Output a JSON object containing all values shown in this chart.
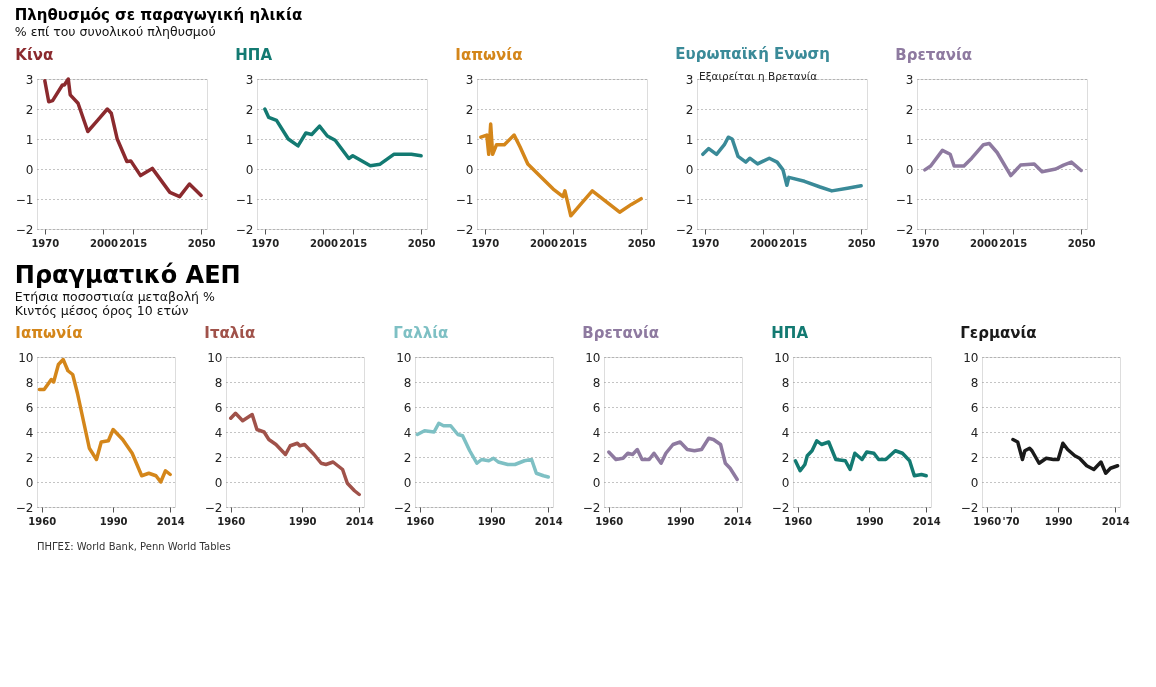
{
  "chart_data": [
    {
      "type": "line",
      "title": "Πληθυσμός σε παραγωγική ηλικία",
      "subtitle": "% επί του συνολικού πληθυσμού",
      "x": [
        1970,
        1972,
        1974,
        1979,
        1980,
        1982,
        1983,
        1987,
        1992,
        1997,
        2002,
        2004,
        2007,
        2012,
        2014,
        2019,
        2025,
        2034,
        2039,
        2044,
        2050
      ],
      "xlim": [
        1966,
        2053
      ],
      "xticks": [
        1970,
        2000,
        2015,
        2050
      ],
      "ylim": [
        -2,
        3
      ],
      "yticks": [
        -2,
        -1,
        0,
        1,
        2,
        3
      ],
      "grid": "y",
      "series": [
        {
          "name": "Κίνα",
          "color": "#8b2a2e",
          "values": [
            2.94,
            2.24,
            2.28,
            2.8,
            2.8,
            3.0,
            2.47,
            2.19,
            1.25,
            1.62,
            2.0,
            1.86,
            1.01,
            0.25,
            0.27,
            -0.22,
            0.02,
            -0.78,
            -0.92,
            -0.5,
            -0.88
          ]
        }
      ]
    },
    {
      "type": "line",
      "x": [
        1970,
        1972,
        1976,
        1982,
        1987,
        1991,
        1994,
        1998,
        2002,
        2006,
        2013,
        2015,
        2024,
        2029,
        2036,
        2045,
        2050
      ],
      "xlim": [
        1966,
        2053
      ],
      "xticks": [
        1970,
        2000,
        2015,
        2050
      ],
      "ylim": [
        -2,
        3
      ],
      "yticks": [
        -2,
        -1,
        0,
        1,
        2,
        3
      ],
      "grid": "y",
      "series": [
        {
          "name": "ΗΠΑ",
          "color": "#137a72",
          "values": [
            2.0,
            1.72,
            1.62,
            1.0,
            0.77,
            1.2,
            1.15,
            1.43,
            1.1,
            0.96,
            0.35,
            0.44,
            0.11,
            0.16,
            0.49,
            0.49,
            0.44
          ]
        }
      ]
    },
    {
      "type": "line",
      "x": [
        1968,
        1971,
        1972,
        1973,
        1974,
        1976,
        1980,
        1985,
        1988,
        1992,
        1999,
        2005,
        2010,
        2011,
        2014,
        2019,
        2025,
        2039,
        2045,
        2050
      ],
      "xlim": [
        1966,
        2053
      ],
      "xticks": [
        1970,
        2000,
        2015,
        2050
      ],
      "ylim": [
        -2,
        3
      ],
      "yticks": [
        -2,
        -1,
        0,
        1,
        2,
        3
      ],
      "grid": "y",
      "series": [
        {
          "name": "Ιαπωνία",
          "color": "#d4861a",
          "values": [
            1.06,
            1.13,
            0.49,
            1.5,
            0.49,
            0.81,
            0.81,
            1.13,
            0.74,
            0.17,
            -0.28,
            -0.67,
            -0.92,
            -0.73,
            -1.56,
            -1.18,
            -0.73,
            -1.44,
            -1.18,
            -0.99
          ]
        }
      ]
    },
    {
      "type": "line",
      "annotations": [
        "Εξαιρείται η Βρετανία"
      ],
      "x": [
        1969,
        1972,
        1976,
        1980,
        1982,
        1984,
        1987,
        1991,
        1993,
        1997,
        2003,
        2007,
        2010,
        2012,
        2013,
        2021,
        2029,
        2035,
        2043,
        2050
      ],
      "xlim": [
        1966,
        2053
      ],
      "xticks": [
        1970,
        2000,
        2015,
        2050
      ],
      "ylim": [
        -2,
        3
      ],
      "yticks": [
        -2,
        -1,
        0,
        1,
        2,
        3
      ],
      "grid": "y",
      "series": [
        {
          "name": "Ευρωπαϊκή Ενωση",
          "color": "#3a8a98",
          "values": [
            0.49,
            0.68,
            0.49,
            0.81,
            1.06,
            1.0,
            0.42,
            0.23,
            0.36,
            0.17,
            0.36,
            0.23,
            -0.03,
            -0.54,
            -0.28,
            -0.41,
            -0.6,
            -0.73,
            -0.64,
            -0.56
          ]
        }
      ]
    },
    {
      "type": "line",
      "x": [
        1970,
        1973,
        1979,
        1983,
        1985,
        1990,
        1994,
        2000,
        2003,
        2007,
        2014,
        2019,
        2026,
        2030,
        2037,
        2041,
        2045,
        2050
      ],
      "xlim": [
        1966,
        2053
      ],
      "xticks": [
        1970,
        2000,
        2015,
        2050
      ],
      "ylim": [
        -2,
        3
      ],
      "yticks": [
        -2,
        -1,
        0,
        1,
        2,
        3
      ],
      "grid": "y",
      "series": [
        {
          "name": "Βρετανία",
          "color": "#8e7aa0",
          "values": [
            -0.03,
            0.1,
            0.62,
            0.49,
            0.1,
            0.1,
            0.36,
            0.81,
            0.85,
            0.55,
            -0.22,
            0.13,
            0.17,
            -0.09,
            0.0,
            0.13,
            0.23,
            -0.05
          ]
        }
      ]
    },
    {
      "type": "line",
      "title": "Πραγματικό ΑΕΠ",
      "subtitle": "Ετήσια ποσοστιαία μεταβολή %",
      "annotations": [
        "Κιντός μέσος όρος 10 ετών",
        "ΠΗΓΕΣ: World Bank, Penn World Tables"
      ],
      "x": [
        1959,
        1961,
        1964,
        1965,
        1967,
        1969,
        1971,
        1973,
        1975,
        1980,
        1983,
        1985,
        1988,
        1990,
        1994,
        1998,
        2002,
        2005,
        2008,
        2010,
        2012,
        2014
      ],
      "xlim": [
        1958,
        2016
      ],
      "xticks": [
        1960,
        1990,
        2014
      ],
      "ylim": [
        -2,
        10
      ],
      "yticks": [
        -2,
        0,
        2,
        4,
        6,
        8,
        10
      ],
      "grid": "y",
      "series": [
        {
          "name": "Ιαπωνία",
          "color": "#d4861a",
          "values": [
            7.4,
            7.4,
            8.2,
            8.0,
            9.4,
            9.8,
            8.9,
            8.6,
            7.1,
            2.7,
            1.8,
            3.2,
            3.3,
            4.2,
            3.4,
            2.3,
            0.5,
            0.7,
            0.5,
            0.0,
            0.9,
            0.6
          ]
        }
      ]
    },
    {
      "type": "line",
      "x": [
        1960,
        1962,
        1965,
        1969,
        1971,
        1974,
        1976,
        1979,
        1983,
        1985,
        1988,
        1989,
        1991,
        1995,
        1998,
        2000,
        2003,
        2007,
        2009,
        2012,
        2014
      ],
      "xlim": [
        1958,
        2016
      ],
      "xticks": [
        1960,
        1990,
        2014
      ],
      "ylim": [
        -2,
        10
      ],
      "yticks": [
        -2,
        0,
        2,
        4,
        6,
        8,
        10
      ],
      "grid": "y",
      "series": [
        {
          "name": "Ιταλία",
          "color": "#a0524a",
          "values": [
            5.1,
            5.5,
            4.9,
            5.4,
            4.2,
            4.0,
            3.4,
            3.0,
            2.2,
            2.9,
            3.1,
            2.9,
            3.0,
            2.2,
            1.5,
            1.4,
            1.6,
            1.0,
            -0.1,
            -0.7,
            -1.0
          ]
        }
      ]
    },
    {
      "type": "line",
      "x": [
        1959,
        1962,
        1966,
        1968,
        1970,
        1973,
        1976,
        1978,
        1981,
        1984,
        1986,
        1989,
        1991,
        1993,
        1997,
        2000,
        2004,
        2007,
        2009,
        2012,
        2014
      ],
      "xlim": [
        1958,
        2016
      ],
      "xticks": [
        1960,
        1990,
        2014
      ],
      "ylim": [
        -2,
        10
      ],
      "yticks": [
        -2,
        0,
        2,
        4,
        6,
        8,
        10
      ],
      "grid": "y",
      "series": [
        {
          "name": "Γαλλία",
          "color": "#7ec0c4",
          "values": [
            3.8,
            4.1,
            4.0,
            4.7,
            4.5,
            4.5,
            3.8,
            3.7,
            2.5,
            1.5,
            1.8,
            1.7,
            1.9,
            1.6,
            1.4,
            1.4,
            1.7,
            1.8,
            0.7,
            0.5,
            0.4
          ]
        }
      ]
    },
    {
      "type": "line",
      "x": [
        1960,
        1963,
        1966,
        1968,
        1970,
        1972,
        1974,
        1977,
        1979,
        1982,
        1984,
        1987,
        1990,
        1993,
        1996,
        1999,
        2002,
        2004,
        2007,
        2009,
        2011,
        2014
      ],
      "xlim": [
        1958,
        2016
      ],
      "xticks": [
        1960,
        1990,
        2014
      ],
      "ylim": [
        -2,
        10
      ],
      "yticks": [
        -2,
        0,
        2,
        4,
        6,
        8,
        10
      ],
      "grid": "y",
      "series": [
        {
          "name": "Βρετανία",
          "color": "#8e7aa0",
          "values": [
            2.4,
            1.8,
            1.9,
            2.3,
            2.2,
            2.6,
            1.8,
            1.8,
            2.3,
            1.5,
            2.3,
            3.0,
            3.2,
            2.6,
            2.5,
            2.6,
            3.5,
            3.4,
            3.0,
            1.5,
            1.1,
            0.2
          ]
        }
      ]
    },
    {
      "type": "line",
      "x": [
        1959,
        1961,
        1963,
        1964,
        1966,
        1968,
        1970,
        1973,
        1976,
        1980,
        1982,
        1984,
        1987,
        1989,
        1992,
        1994,
        1997,
        2001,
        2004,
        2007,
        2009,
        2012,
        2014
      ],
      "xlim": [
        1958,
        2016
      ],
      "xticks": [
        1960,
        1990,
        2014
      ],
      "ylim": [
        -2,
        10
      ],
      "yticks": [
        -2,
        0,
        2,
        4,
        6,
        8,
        10
      ],
      "grid": "y",
      "series": [
        {
          "name": "ΗΠΑ",
          "color": "#137a72",
          "values": [
            1.7,
            0.9,
            1.4,
            2.1,
            2.5,
            3.3,
            3.0,
            3.2,
            1.8,
            1.7,
            1.0,
            2.3,
            1.8,
            2.4,
            2.3,
            1.8,
            1.8,
            2.5,
            2.3,
            1.7,
            0.5,
            0.6,
            0.5
          ]
        }
      ]
    },
    {
      "type": "line",
      "x": [
        1971,
        1973,
        1975,
        1976,
        1978,
        1979,
        1982,
        1985,
        1988,
        1990,
        1992,
        1994,
        1997,
        1999,
        2002,
        2005,
        2008,
        2010,
        2012,
        2015
      ],
      "xlim": [
        1958,
        2016
      ],
      "xticks": [
        1960,
        {
          "value": 1970,
          "label": "'70"
        },
        1990,
        2014
      ],
      "ylim": [
        -2,
        10
      ],
      "yticks": [
        -2,
        0,
        2,
        4,
        6,
        8,
        10
      ],
      "grid": "y",
      "series": [
        {
          "name": "Γερμανία",
          "color": "#1a1a1a",
          "values": [
            3.4,
            3.2,
            1.8,
            2.5,
            2.7,
            2.5,
            1.5,
            1.9,
            1.8,
            1.8,
            3.1,
            2.6,
            2.1,
            1.9,
            1.3,
            1.0,
            1.6,
            0.7,
            1.1,
            1.3
          ]
        }
      ]
    }
  ]
}
